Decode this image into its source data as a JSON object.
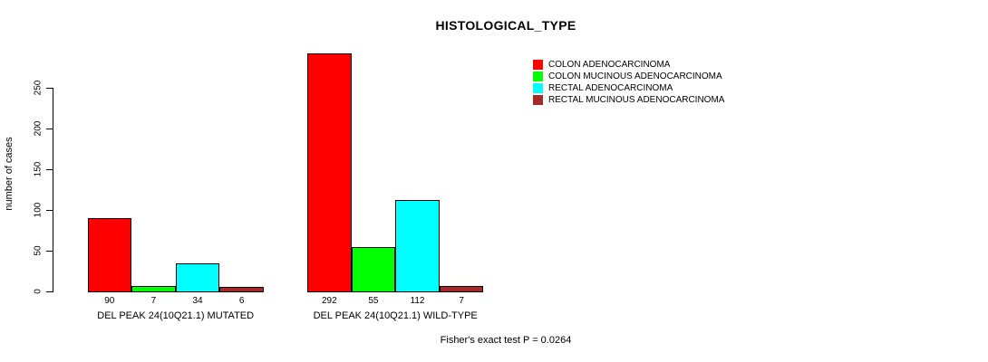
{
  "title": "HISTOLOGICAL_TYPE",
  "footer": "Fisher's exact test P = 0.0264",
  "chart_data": {
    "type": "bar",
    "title": "HISTOLOGICAL_TYPE",
    "ylabel": "number of cases",
    "xlabel": "",
    "ylim": [
      0,
      250
    ],
    "yticks": [
      0,
      50,
      100,
      150,
      200,
      250
    ],
    "grid": false,
    "legend_position": "top-right",
    "bar_value_labels": true,
    "categories": [
      "DEL PEAK 24(10Q21.1) MUTATED",
      "DEL PEAK 24(10Q21.1) WILD-TYPE"
    ],
    "series": [
      {
        "name": "COLON ADENOCARCINOMA",
        "color": "#FF0000",
        "values": [
          90,
          292
        ]
      },
      {
        "name": "COLON MUCINOUS ADENOCARCINOMA",
        "color": "#00FF00",
        "values": [
          7,
          55
        ]
      },
      {
        "name": "RECTAL ADENOCARCINOMA",
        "color": "#00FFFF",
        "values": [
          34,
          112
        ]
      },
      {
        "name": "RECTAL MUCINOUS ADENOCARCINOMA",
        "color": "#A52A2A",
        "values": [
          6,
          7
        ]
      }
    ],
    "annotation": "Fisher's exact test P = 0.0264"
  }
}
